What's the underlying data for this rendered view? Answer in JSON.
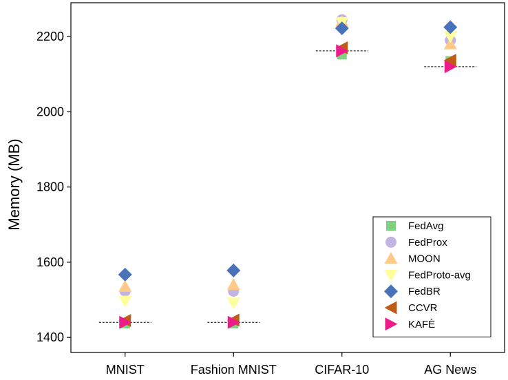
{
  "chart_data": {
    "type": "scatter",
    "title": "",
    "xlabel": "",
    "ylabel": "Memory (MB)",
    "categories": [
      "MNIST",
      "Fashion MNIST",
      "CIFAR-10",
      "AG News"
    ],
    "ylim": [
      1360,
      2290
    ],
    "yticks": [
      1400,
      1600,
      1800,
      2000,
      2200
    ],
    "grid": false,
    "legend_position": "bottom-right",
    "series": [
      {
        "name": "FedAvg",
        "marker": "square",
        "color": "#7fd17f",
        "values": [
          1437,
          1437,
          2152,
          2135
        ]
      },
      {
        "name": "FedProx",
        "marker": "circle",
        "color": "#c2b3e0",
        "values": [
          1523,
          1523,
          2245,
          2190
        ]
      },
      {
        "name": "MOON",
        "marker": "triangle-up",
        "color": "#ffc98a",
        "values": [
          1535,
          1540,
          2240,
          2180
        ]
      },
      {
        "name": "FedProto-avg",
        "marker": "triangle-down",
        "color": "#ffff9a",
        "values": [
          1497,
          1492,
          2238,
          2200
        ]
      },
      {
        "name": "FedBR",
        "marker": "diamond",
        "color": "#4a72b8",
        "values": [
          1567,
          1578,
          2222,
          2225
        ]
      },
      {
        "name": "CCVR",
        "marker": "triangle-left",
        "color": "#bf5b17",
        "values": [
          1445,
          1446,
          2170,
          2137
        ]
      },
      {
        "name": "KAFÈ",
        "marker": "triangle-right",
        "color": "#ec1a8a",
        "values": [
          1440,
          1440,
          2162,
          2120
        ]
      }
    ],
    "reference_lines": [
      {
        "category": "MNIST",
        "value": 1440
      },
      {
        "category": "Fashion MNIST",
        "value": 1440
      },
      {
        "category": "CIFAR-10",
        "value": 2162
      },
      {
        "category": "AG News",
        "value": 2120
      }
    ]
  }
}
